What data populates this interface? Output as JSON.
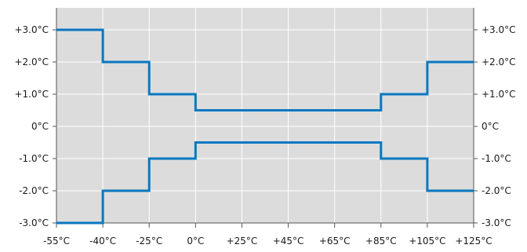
{
  "chart_data": {
    "type": "line",
    "title": "",
    "xlabel": "",
    "ylabel": "",
    "x_ticks": [
      -55,
      -40,
      -25,
      0,
      25,
      45,
      65,
      85,
      105,
      125
    ],
    "x_tick_labels": [
      "-55°C",
      "-40°C",
      "-25°C",
      "0°C",
      "+25°C",
      "+45°C",
      "+65°C",
      "+85°C",
      "+105°C",
      "+125°C"
    ],
    "y_ticks": [
      3,
      2,
      1,
      0,
      -1,
      -2,
      -3
    ],
    "y_tick_labels_left": [
      "+3.0°C",
      "+2.0°C",
      "+1.0°C",
      "0°C",
      "-1.0°C",
      "-2.0°C",
      "-3.0°C"
    ],
    "y_tick_labels_right": [
      "+3.0°C",
      "+2.0°C",
      "+1.0°C",
      "0°C",
      "-1.0°C",
      "-2.0°C",
      "-3.0°C"
    ],
    "ylim": [
      -3,
      3.5
    ],
    "grid": true,
    "x_scale": "categorical-evenly-spaced",
    "series": [
      {
        "steps": [
          {
            "x_from": -55,
            "x_to": -40,
            "y": 3.0
          },
          {
            "x_from": -40,
            "x_to": -25,
            "y": 2.0
          },
          {
            "x_from": -25,
            "x_to": 0,
            "y": 1.0
          },
          {
            "x_from": 0,
            "x_to": 85,
            "y": 0.5
          },
          {
            "x_from": 85,
            "x_to": 105,
            "y": 1.0
          },
          {
            "x_from": 105,
            "x_to": 125,
            "y": 2.0
          }
        ]
      },
      {
        "steps": [
          {
            "x_from": -55,
            "x_to": -40,
            "y": -3.0
          },
          {
            "x_from": -40,
            "x_to": -25,
            "y": -2.0
          },
          {
            "x_from": -25,
            "x_to": 0,
            "y": -1.0
          },
          {
            "x_from": 0,
            "x_to": 85,
            "y": -0.5
          },
          {
            "x_from": 85,
            "x_to": 105,
            "y": -1.0
          },
          {
            "x_from": 105,
            "x_to": 125,
            "y": -2.0
          }
        ]
      }
    ],
    "colors": {
      "plot_background": "#dcdcdc",
      "grid": "#ffffff",
      "axis": "#555555",
      "line": "#0a78c0"
    }
  }
}
